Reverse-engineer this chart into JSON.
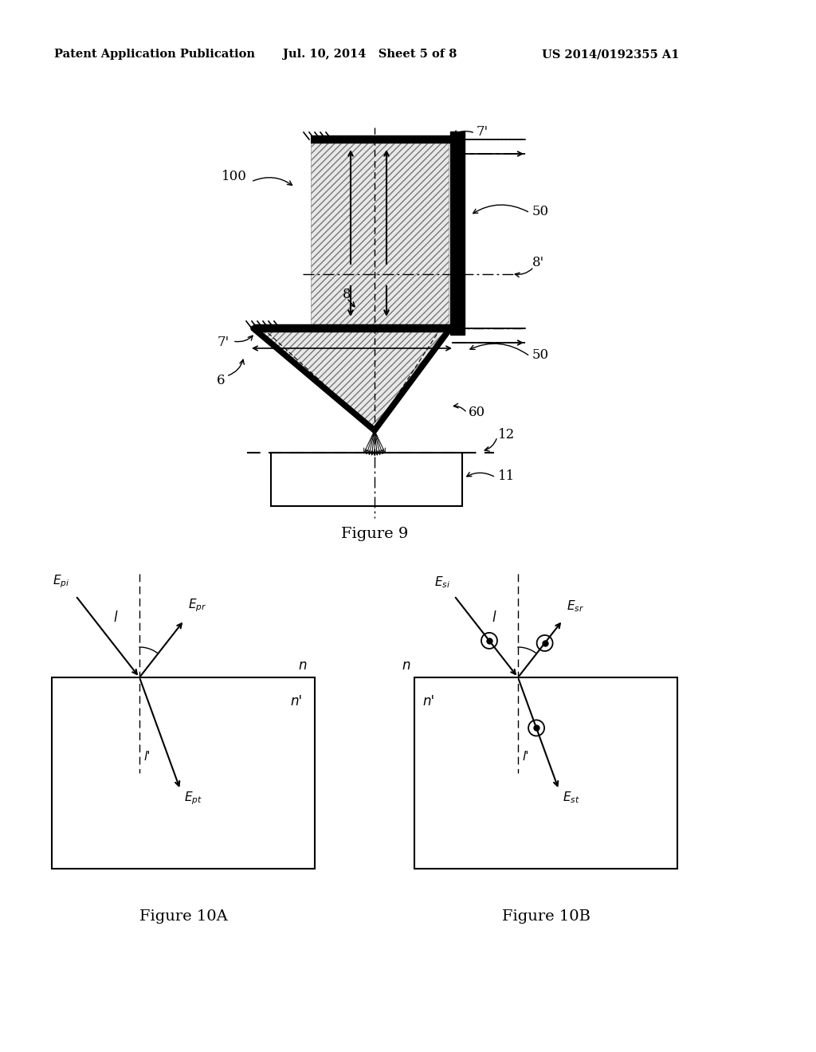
{
  "bg_color": "#ffffff",
  "header_left": "Patent Application Publication",
  "header_mid": "Jul. 10, 2014   Sheet 5 of 8",
  "header_right": "US 2014/0192355 A1",
  "fig9_caption": "Figure 9",
  "fig10a_caption": "Figure 10A",
  "fig10b_caption": "Figure 10B"
}
